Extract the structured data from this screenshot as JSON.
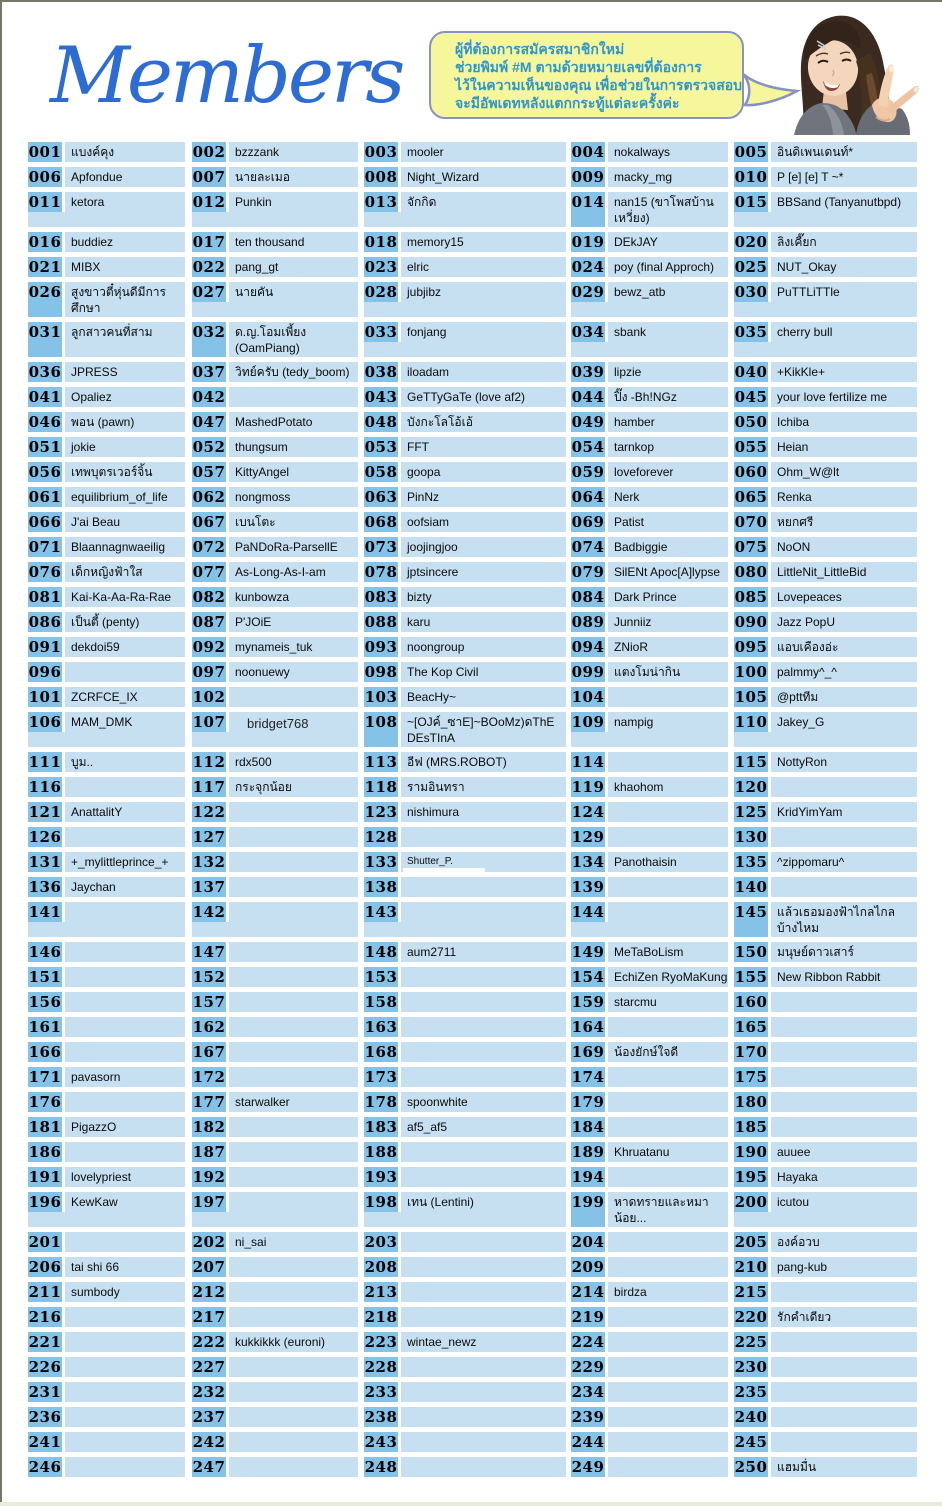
{
  "page": {
    "title": "Members"
  },
  "bubble": {
    "lines": [
      "ผู้ที่ต้องการสมัครสมาชิกใหม่",
      "ช่วยพิมพ์ #M ตามด้วยหมายเลขที่ต้องการ",
      "ไว้ในความเห็นของคุณ เพื่อช่วยในการตรวจสอบ",
      "จะมีอัพเดทหลังแตกกระทู้แต่ละครั้งค่ะ"
    ]
  },
  "colors": {
    "badge_blue": "#84c2e8",
    "cell_blue": "#c6e0f2",
    "title_blue": "#2d6dd3",
    "bubble_fill": "#f6f79d",
    "bubble_border": "#8792c2",
    "bubble_text": "#2e96c8",
    "page_border": "#75756a",
    "bottom_line": "#edebd8"
  },
  "members": [
    {
      "num": "001",
      "name": "แบงค์คุง"
    },
    {
      "num": "002",
      "name": "bzzzank"
    },
    {
      "num": "003",
      "name": "mooler"
    },
    {
      "num": "004",
      "name": "nokalways"
    },
    {
      "num": "005",
      "name": "อินดิเพนเดนท์*"
    },
    {
      "num": "006",
      "name": "Apfondue"
    },
    {
      "num": "007",
      "name": "นายละเมอ"
    },
    {
      "num": "008",
      "name": "Night_Wizard"
    },
    {
      "num": "009",
      "name": "macky_mg"
    },
    {
      "num": "010",
      "name": "P [e] [e] T ~*"
    },
    {
      "num": "011",
      "name": "ketora"
    },
    {
      "num": "012",
      "name": "Punkin"
    },
    {
      "num": "013",
      "name": "จักกิด"
    },
    {
      "num": "014",
      "name": "nan15 (ขาโพสบ้าน เหวี่ยง)"
    },
    {
      "num": "015",
      "name": "BBSand (Tanyanutbpd)"
    },
    {
      "num": "016",
      "name": "buddiez"
    },
    {
      "num": "017",
      "name": "ten thousand"
    },
    {
      "num": "018",
      "name": "memory15"
    },
    {
      "num": "019",
      "name": "DEkJAY"
    },
    {
      "num": "020",
      "name": "ลิงเคี๊ยก"
    },
    {
      "num": "021",
      "name": "MIBX"
    },
    {
      "num": "022",
      "name": "pang_gt"
    },
    {
      "num": "023",
      "name": "elric"
    },
    {
      "num": "024",
      "name": "poy (final Approch)"
    },
    {
      "num": "025",
      "name": "NUT_Okay"
    },
    {
      "num": "026",
      "name": "สูงขาวตี๋หุ่นดีมีการ ศึกษา"
    },
    {
      "num": "027",
      "name": "นายคัน"
    },
    {
      "num": "028",
      "name": "jubjibz"
    },
    {
      "num": "029",
      "name": "bewz_atb"
    },
    {
      "num": "030",
      "name": "PuTTLiTTle"
    },
    {
      "num": "031",
      "name": "ลูกสาวคนที่สาม"
    },
    {
      "num": "032",
      "name": "ด.ญ.โอมเพี้ยง (OamPiang)"
    },
    {
      "num": "033",
      "name": "fonjang"
    },
    {
      "num": "034",
      "name": "sbank"
    },
    {
      "num": "035",
      "name": "cherry bull"
    },
    {
      "num": "036",
      "name": "JPRESS"
    },
    {
      "num": "037",
      "name": "วิทย์ครับ (tedy_boom)"
    },
    {
      "num": "038",
      "name": "iloadam"
    },
    {
      "num": "039",
      "name": "lipzie"
    },
    {
      "num": "040",
      "name": "+KikKle+"
    },
    {
      "num": "041",
      "name": "Opaliez"
    },
    {
      "num": "042",
      "name": ""
    },
    {
      "num": "043",
      "name": "GeTTyGaTe (love af2)"
    },
    {
      "num": "044",
      "name": "ปิ๊ง -Bh!NGz"
    },
    {
      "num": "045",
      "name": "your love fertilize me"
    },
    {
      "num": "046",
      "name": "พอน (pawn)"
    },
    {
      "num": "047",
      "name": "MashedPotato"
    },
    {
      "num": "048",
      "name": "บังกะโลโอ้เอ้"
    },
    {
      "num": "049",
      "name": "hamber"
    },
    {
      "num": "050",
      "name": "Ichiba"
    },
    {
      "num": "051",
      "name": "jokie"
    },
    {
      "num": "052",
      "name": "thungsum"
    },
    {
      "num": "053",
      "name": "FFT"
    },
    {
      "num": "054",
      "name": "tarnkop"
    },
    {
      "num": "055",
      "name": "Heian"
    },
    {
      "num": "056",
      "name": "เทพบุตรเวอร์จิ้น"
    },
    {
      "num": "057",
      "name": "KittyAngel"
    },
    {
      "num": "058",
      "name": "goopa"
    },
    {
      "num": "059",
      "name": "loveforever"
    },
    {
      "num": "060",
      "name": "Ohm_W@lt"
    },
    {
      "num": "061",
      "name": "equilibrium_of_life"
    },
    {
      "num": "062",
      "name": "nongmoss"
    },
    {
      "num": "063",
      "name": "PinNz"
    },
    {
      "num": "064",
      "name": "Nerk"
    },
    {
      "num": "065",
      "name": "Renka"
    },
    {
      "num": "066",
      "name": "J'ai Beau"
    },
    {
      "num": "067",
      "name": "เบนโตะ"
    },
    {
      "num": "068",
      "name": "oofsiam"
    },
    {
      "num": "069",
      "name": "Patist"
    },
    {
      "num": "070",
      "name": "หยกศรี"
    },
    {
      "num": "071",
      "name": "Blaannagnwaeilig"
    },
    {
      "num": "072",
      "name": "PaNDoRa-ParsellE"
    },
    {
      "num": "073",
      "name": "joojingjoo"
    },
    {
      "num": "074",
      "name": "Badbiggie"
    },
    {
      "num": "075",
      "name": "NoON"
    },
    {
      "num": "076",
      "name": "เด็กหญิงฟ้าใส"
    },
    {
      "num": "077",
      "name": "As-Long-As-I-am"
    },
    {
      "num": "078",
      "name": "jptsincere"
    },
    {
      "num": "079",
      "name": "SilENt Apoc[A]lypse"
    },
    {
      "num": "080",
      "name": "LittleNit_LittleBid"
    },
    {
      "num": "081",
      "name": "Kai-Ka-Aa-Ra-Rae"
    },
    {
      "num": "082",
      "name": "kunbowza"
    },
    {
      "num": "083",
      "name": "bizty"
    },
    {
      "num": "084",
      "name": "Dark Prince"
    },
    {
      "num": "085",
      "name": "Lovepeaces"
    },
    {
      "num": "086",
      "name": "เป็นตี้ (penty)"
    },
    {
      "num": "087",
      "name": "P'JOiE"
    },
    {
      "num": "088",
      "name": "karu"
    },
    {
      "num": "089",
      "name": "Junniiz"
    },
    {
      "num": "090",
      "name": "Jazz PopU"
    },
    {
      "num": "091",
      "name": "dekdoi59"
    },
    {
      "num": "092",
      "name": "mynameis_tuk"
    },
    {
      "num": "093",
      "name": "noongroup"
    },
    {
      "num": "094",
      "name": "ZNioR"
    },
    {
      "num": "095",
      "name": "แอบเคืองอ่ะ"
    },
    {
      "num": "096",
      "name": ""
    },
    {
      "num": "097",
      "name": "noonuewy"
    },
    {
      "num": "098",
      "name": "The Kop Civil"
    },
    {
      "num": "099",
      "name": "แตงโมน่ากิน"
    },
    {
      "num": "100",
      "name": "palmmy^_^"
    },
    {
      "num": "101",
      "name": "ZCRFCE_IX"
    },
    {
      "num": "102",
      "name": ""
    },
    {
      "num": "103",
      "name": "BeacHy~"
    },
    {
      "num": "104",
      "name": ""
    },
    {
      "num": "105",
      "name": "@pttทีม"
    },
    {
      "num": "106",
      "name": "MAM_DMK"
    },
    {
      "num": "107",
      "name": "bridget768"
    },
    {
      "num": "108",
      "name": "~[OJค์_ซาE]~BOoMz)ดThE DEsTInA"
    },
    {
      "num": "109",
      "name": "nampig"
    },
    {
      "num": "110",
      "name": "Jakey_G"
    },
    {
      "num": "111",
      "name": "บูม.."
    },
    {
      "num": "112",
      "name": "rdx500"
    },
    {
      "num": "113",
      "name": "อีฟ (MRS.ROBOT)"
    },
    {
      "num": "114",
      "name": ""
    },
    {
      "num": "115",
      "name": "NottyRon"
    },
    {
      "num": "116",
      "name": ""
    },
    {
      "num": "117",
      "name": "กระจุกน้อย"
    },
    {
      "num": "118",
      "name": "รามอินทรา"
    },
    {
      "num": "119",
      "name": "khaohom"
    },
    {
      "num": "120",
      "name": ""
    },
    {
      "num": "121",
      "name": "AnattalitY"
    },
    {
      "num": "122",
      "name": ""
    },
    {
      "num": "123",
      "name": "nishimura"
    },
    {
      "num": "124",
      "name": ""
    },
    {
      "num": "125",
      "name": "KridYimYam"
    },
    {
      "num": "126",
      "name": ""
    },
    {
      "num": "127",
      "name": ""
    },
    {
      "num": "128",
      "name": ""
    },
    {
      "num": "129",
      "name": ""
    },
    {
      "num": "130",
      "name": ""
    },
    {
      "num": "131",
      "name": "+_mylittleprince_+"
    },
    {
      "num": "132",
      "name": ""
    },
    {
      "num": "133",
      "name": "Shutter_P."
    },
    {
      "num": "134",
      "name": "Panothaisin"
    },
    {
      "num": "135",
      "name": "^zippomaru^"
    },
    {
      "num": "136",
      "name": "Jaychan"
    },
    {
      "num": "137",
      "name": ""
    },
    {
      "num": "138",
      "name": ""
    },
    {
      "num": "139",
      "name": ""
    },
    {
      "num": "140",
      "name": ""
    },
    {
      "num": "141",
      "name": ""
    },
    {
      "num": "142",
      "name": ""
    },
    {
      "num": "143",
      "name": ""
    },
    {
      "num": "144",
      "name": ""
    },
    {
      "num": "145",
      "name": "แล้วเธอมองฟ้าไกลไกล บ้างไหม"
    },
    {
      "num": "146",
      "name": ""
    },
    {
      "num": "147",
      "name": ""
    },
    {
      "num": "148",
      "name": "aum2711"
    },
    {
      "num": "149",
      "name": "MeTaBoLism"
    },
    {
      "num": "150",
      "name": "มนุษย์ดาวเสาร์"
    },
    {
      "num": "151",
      "name": ""
    },
    {
      "num": "152",
      "name": ""
    },
    {
      "num": "153",
      "name": ""
    },
    {
      "num": "154",
      "name": "EchiZen RyoMaKung"
    },
    {
      "num": "155",
      "name": "New Ribbon Rabbit"
    },
    {
      "num": "156",
      "name": ""
    },
    {
      "num": "157",
      "name": ""
    },
    {
      "num": "158",
      "name": ""
    },
    {
      "num": "159",
      "name": "starcmu"
    },
    {
      "num": "160",
      "name": ""
    },
    {
      "num": "161",
      "name": ""
    },
    {
      "num": "162",
      "name": ""
    },
    {
      "num": "163",
      "name": ""
    },
    {
      "num": "164",
      "name": ""
    },
    {
      "num": "165",
      "name": ""
    },
    {
      "num": "166",
      "name": ""
    },
    {
      "num": "167",
      "name": ""
    },
    {
      "num": "168",
      "name": ""
    },
    {
      "num": "169",
      "name": "น้องยักษ์ใจดี"
    },
    {
      "num": "170",
      "name": ""
    },
    {
      "num": "171",
      "name": "pavasorn"
    },
    {
      "num": "172",
      "name": ""
    },
    {
      "num": "173",
      "name": ""
    },
    {
      "num": "174",
      "name": ""
    },
    {
      "num": "175",
      "name": ""
    },
    {
      "num": "176",
      "name": ""
    },
    {
      "num": "177",
      "name": "starwalker"
    },
    {
      "num": "178",
      "name": "spoonwhite"
    },
    {
      "num": "179",
      "name": ""
    },
    {
      "num": "180",
      "name": ""
    },
    {
      "num": "181",
      "name": "PigazzO"
    },
    {
      "num": "182",
      "name": ""
    },
    {
      "num": "183",
      "name": "af5_af5"
    },
    {
      "num": "184",
      "name": ""
    },
    {
      "num": "185",
      "name": ""
    },
    {
      "num": "186",
      "name": ""
    },
    {
      "num": "187",
      "name": ""
    },
    {
      "num": "188",
      "name": ""
    },
    {
      "num": "189",
      "name": "Khruatanu"
    },
    {
      "num": "190",
      "name": "auuee"
    },
    {
      "num": "191",
      "name": "lovelypriest"
    },
    {
      "num": "192",
      "name": ""
    },
    {
      "num": "193",
      "name": ""
    },
    {
      "num": "194",
      "name": ""
    },
    {
      "num": "195",
      "name": "Hayaka"
    },
    {
      "num": "196",
      "name": "KewKaw"
    },
    {
      "num": "197",
      "name": ""
    },
    {
      "num": "198",
      "name": "เทน (Lentini)"
    },
    {
      "num": "199",
      "name": "หาดทรายและหมา น้อย..."
    },
    {
      "num": "200",
      "name": "icutou"
    },
    {
      "num": "201",
      "name": ""
    },
    {
      "num": "202",
      "name": "ni_sai"
    },
    {
      "num": "203",
      "name": ""
    },
    {
      "num": "204",
      "name": ""
    },
    {
      "num": "205",
      "name": "องค์อวบ"
    },
    {
      "num": "206",
      "name": "tai shi 66"
    },
    {
      "num": "207",
      "name": ""
    },
    {
      "num": "208",
      "name": ""
    },
    {
      "num": "209",
      "name": ""
    },
    {
      "num": "210",
      "name": "pang-kub"
    },
    {
      "num": "211",
      "name": "sumbody"
    },
    {
      "num": "212",
      "name": ""
    },
    {
      "num": "213",
      "name": ""
    },
    {
      "num": "214",
      "name": "birdza"
    },
    {
      "num": "215",
      "name": ""
    },
    {
      "num": "216",
      "name": ""
    },
    {
      "num": "217",
      "name": ""
    },
    {
      "num": "218",
      "name": ""
    },
    {
      "num": "219",
      "name": ""
    },
    {
      "num": "220",
      "name": "รักคำเดียว"
    },
    {
      "num": "221",
      "name": ""
    },
    {
      "num": "222",
      "name": "kukkikkk (euroni)"
    },
    {
      "num": "223",
      "name": "wintae_newz"
    },
    {
      "num": "224",
      "name": ""
    },
    {
      "num": "225",
      "name": ""
    },
    {
      "num": "226",
      "name": ""
    },
    {
      "num": "227",
      "name": ""
    },
    {
      "num": "228",
      "name": ""
    },
    {
      "num": "229",
      "name": ""
    },
    {
      "num": "230",
      "name": ""
    },
    {
      "num": "231",
      "name": ""
    },
    {
      "num": "232",
      "name": ""
    },
    {
      "num": "233",
      "name": ""
    },
    {
      "num": "234",
      "name": ""
    },
    {
      "num": "235",
      "name": ""
    },
    {
      "num": "236",
      "name": ""
    },
    {
      "num": "237",
      "name": ""
    },
    {
      "num": "238",
      "name": ""
    },
    {
      "num": "239",
      "name": ""
    },
    {
      "num": "240",
      "name": ""
    },
    {
      "num": "241",
      "name": ""
    },
    {
      "num": "242",
      "name": ""
    },
    {
      "num": "243",
      "name": ""
    },
    {
      "num": "244",
      "name": ""
    },
    {
      "num": "245",
      "name": ""
    },
    {
      "num": "246",
      "name": ""
    },
    {
      "num": "247",
      "name": ""
    },
    {
      "num": "248",
      "name": ""
    },
    {
      "num": "249",
      "name": ""
    },
    {
      "num": "250",
      "name": "แฮมมื่น"
    }
  ]
}
